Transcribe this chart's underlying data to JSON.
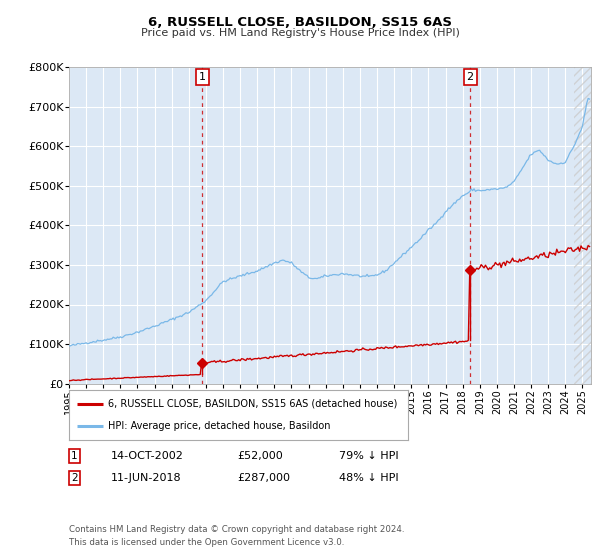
{
  "title": "6, RUSSELL CLOSE, BASILDON, SS15 6AS",
  "subtitle": "Price paid vs. HM Land Registry's House Price Index (HPI)",
  "hpi_label": "HPI: Average price, detached house, Basildon",
  "price_label": "6, RUSSELL CLOSE, BASILDON, SS15 6AS (detached house)",
  "hpi_color": "#7ab8e8",
  "price_color": "#cc0000",
  "dashed_color": "#cc0000",
  "bg_color": "#ffffff",
  "plot_bg_color": "#dce8f5",
  "grid_color": "#ffffff",
  "ylim": [
    0,
    800000
  ],
  "yticks": [
    0,
    100000,
    200000,
    300000,
    400000,
    500000,
    600000,
    700000,
    800000
  ],
  "ytick_labels": [
    "£0",
    "£100K",
    "£200K",
    "£300K",
    "£400K",
    "£500K",
    "£600K",
    "£700K",
    "£800K"
  ],
  "xlim_start": 1995.0,
  "xlim_end": 2025.5,
  "xticks": [
    1995,
    1996,
    1997,
    1998,
    1999,
    2000,
    2001,
    2002,
    2003,
    2004,
    2005,
    2006,
    2007,
    2008,
    2009,
    2010,
    2011,
    2012,
    2013,
    2014,
    2015,
    2016,
    2017,
    2018,
    2019,
    2020,
    2021,
    2022,
    2023,
    2024,
    2025
  ],
  "sale1_x": 2002.79,
  "sale1_y": 52000,
  "sale2_x": 2018.44,
  "sale2_y": 287000,
  "annotation1_date": "14-OCT-2002",
  "annotation1_price": "£52,000",
  "annotation1_hpi": "79% ↓ HPI",
  "annotation2_date": "11-JUN-2018",
  "annotation2_price": "£287,000",
  "annotation2_hpi": "48% ↓ HPI",
  "footer1": "Contains HM Land Registry data © Crown copyright and database right 2024.",
  "footer2": "This data is licensed under the Open Government Licence v3.0.",
  "hpi_color_fill": "#b8d8f0",
  "hatched_start": 2024.5,
  "sale1_label": "1",
  "sale2_label": "2"
}
